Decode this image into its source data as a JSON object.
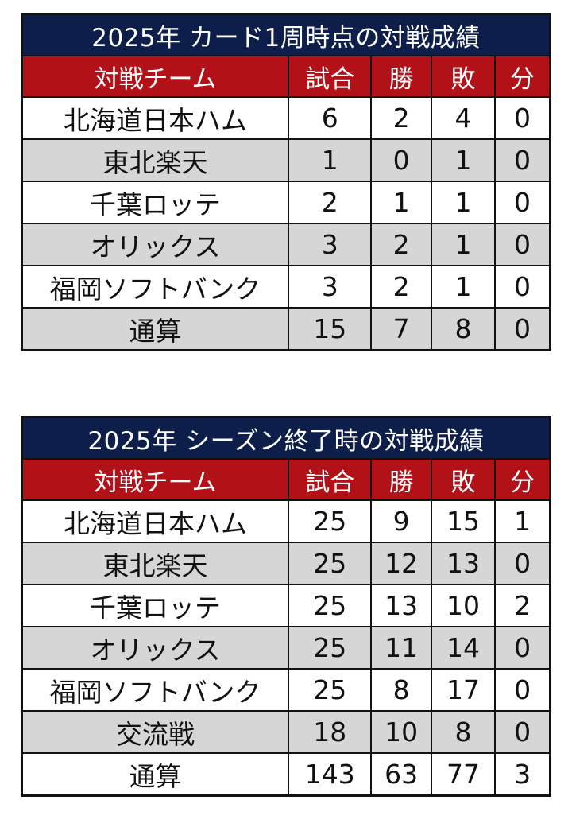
{
  "colors": {
    "title_bg": "#0d1e4a",
    "header_bg": "#b31118",
    "alt_row_bg": "#d6d6d6"
  },
  "tables": [
    {
      "title": "2025年 カード1周時点の対戦成績",
      "headers": [
        "対戦チーム",
        "試合",
        "勝",
        "敗",
        "分"
      ],
      "rows": [
        [
          "北海道日本ハム",
          "6",
          "2",
          "4",
          "0"
        ],
        [
          "東北楽天",
          "1",
          "0",
          "1",
          "0"
        ],
        [
          "千葉ロッテ",
          "2",
          "1",
          "1",
          "0"
        ],
        [
          "オリックス",
          "3",
          "2",
          "1",
          "0"
        ],
        [
          "福岡ソフトバンク",
          "3",
          "2",
          "1",
          "0"
        ],
        [
          "通算",
          "15",
          "7",
          "8",
          "0"
        ]
      ]
    },
    {
      "title": "2025年 シーズン終了時の対戦成績",
      "headers": [
        "対戦チーム",
        "試合",
        "勝",
        "敗",
        "分"
      ],
      "rows": [
        [
          "北海道日本ハム",
          "25",
          "9",
          "15",
          "1"
        ],
        [
          "東北楽天",
          "25",
          "12",
          "13",
          "0"
        ],
        [
          "千葉ロッテ",
          "25",
          "13",
          "10",
          "2"
        ],
        [
          "オリックス",
          "25",
          "11",
          "14",
          "0"
        ],
        [
          "福岡ソフトバンク",
          "25",
          "8",
          "17",
          "0"
        ],
        [
          "交流戦",
          "18",
          "10",
          "8",
          "0"
        ],
        [
          "通算",
          "143",
          "63",
          "77",
          "3"
        ]
      ]
    }
  ]
}
